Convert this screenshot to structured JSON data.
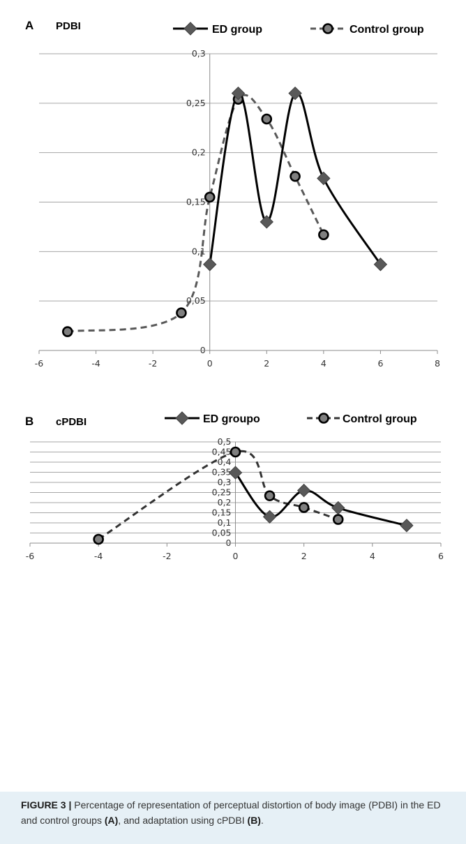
{
  "chart_data": [
    {
      "panel": "A",
      "type": "line",
      "title": "PDBI",
      "xlim": [
        -6,
        8
      ],
      "ylim": [
        0,
        0.3
      ],
      "x_ticks": [
        "-6",
        "-4",
        "-2",
        "0",
        "2",
        "4",
        "6",
        "8"
      ],
      "y_ticks": [
        "0",
        "0,05",
        "0,1",
        "0,15",
        "0,2",
        "0,25",
        "0,3"
      ],
      "grid": true,
      "legend_position": "top",
      "series": [
        {
          "name": "ED group",
          "marker": "diamond",
          "line": "solid",
          "color": "#000000",
          "marker_color": "#595959",
          "points": [
            [
              0,
              0.087
            ],
            [
              1,
              0.26
            ],
            [
              2,
              0.13
            ],
            [
              3,
              0.26
            ],
            [
              4,
              0.174
            ],
            [
              6,
              0.087
            ]
          ]
        },
        {
          "name": "Control group",
          "marker": "circle",
          "line": "dashed",
          "color": "#595959",
          "marker_color": "#7f7f7f",
          "points": [
            [
              -5,
              0.019
            ],
            [
              -1,
              0.038
            ],
            [
              0,
              0.155
            ],
            [
              1,
              0.254
            ],
            [
              2,
              0.234
            ],
            [
              3,
              0.176
            ],
            [
              4,
              0.117
            ]
          ]
        }
      ]
    },
    {
      "panel": "B",
      "type": "line",
      "title": "cPDBI",
      "xlim": [
        -6,
        6
      ],
      "ylim": [
        0,
        0.5
      ],
      "x_ticks": [
        "-6",
        "-4",
        "-2",
        "0",
        "2",
        "4",
        "6"
      ],
      "y_ticks": [
        "0",
        "0,05",
        "0,1",
        "0,15",
        "0,2",
        "0,25",
        "0,3",
        "0,35",
        "0,4",
        "0,45",
        "0,5"
      ],
      "grid": true,
      "legend_position": "top",
      "series": [
        {
          "name": "ED groupo",
          "marker": "diamond",
          "line": "solid",
          "color": "#000000",
          "marker_color": "#595959",
          "points": [
            [
              0,
              0.348
            ],
            [
              1,
              0.13
            ],
            [
              2,
              0.26
            ],
            [
              3,
              0.174
            ],
            [
              5,
              0.087
            ]
          ]
        },
        {
          "name": "Control group",
          "marker": "circle",
          "line": "dashed",
          "color": "#333333",
          "marker_color": "#7f7f7f",
          "points": [
            [
              -4,
              0.019
            ],
            [
              0,
              0.45
            ],
            [
              1,
              0.234
            ],
            [
              2,
              0.176
            ],
            [
              3,
              0.117
            ]
          ]
        }
      ]
    }
  ],
  "caption": {
    "label": "FIGURE 3 |",
    "text_1": " Percentage of representation of perceptual distortion of body image (PDBI) in the ED and control groups ",
    "ref_a": "(A)",
    "text_2": ", and adaptation using cPDBI ",
    "ref_b": "(B)",
    "text_3": "."
  }
}
